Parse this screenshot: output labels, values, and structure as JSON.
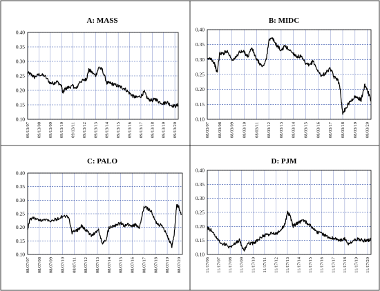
{
  "chart_data": [
    {
      "type": "line",
      "title": "A: MASS",
      "ylim": [
        0.1,
        0.4
      ],
      "yticks": [
        "0.10",
        "0.15",
        "0.20",
        "0.25",
        "0.30",
        "0.35",
        "0.40"
      ],
      "xticks": [
        "09/13/07",
        "09/13/08",
        "09/13/09",
        "09/13/10",
        "09/13/11",
        "09/13/12",
        "09/13/13",
        "09/13/14",
        "09/13/15",
        "09/13/16",
        "09/13/17",
        "09/13/18",
        "09/13/19",
        "09/13/20"
      ],
      "grid": true,
      "x": [
        0.0,
        0.3,
        0.6,
        1.0,
        1.5,
        2.0,
        2.3,
        2.6,
        3.0,
        3.1,
        3.3,
        3.6,
        4.0,
        4.3,
        4.6,
        5.0,
        5.2,
        5.4,
        5.6,
        6.0,
        6.3,
        6.6,
        7.0,
        7.3,
        7.6,
        8.0,
        8.3,
        8.6,
        9.0,
        9.3,
        9.6,
        10.0,
        10.3,
        10.6,
        11.0,
        11.3,
        11.6,
        12.0,
        12.3,
        12.6,
        13.0,
        13.3
      ],
      "y": [
        0.26,
        0.255,
        0.245,
        0.255,
        0.25,
        0.225,
        0.225,
        0.23,
        0.215,
        0.19,
        0.205,
        0.21,
        0.215,
        0.205,
        0.23,
        0.235,
        0.24,
        0.27,
        0.265,
        0.25,
        0.28,
        0.27,
        0.225,
        0.225,
        0.22,
        0.215,
        0.21,
        0.205,
        0.19,
        0.18,
        0.175,
        0.18,
        0.195,
        0.17,
        0.165,
        0.17,
        0.16,
        0.155,
        0.16,
        0.15,
        0.145,
        0.15
      ]
    },
    {
      "type": "line",
      "title": "B: MIDC",
      "ylim": [
        0.1,
        0.4
      ],
      "yticks": [
        "0.10",
        "0.15",
        "0.20",
        "0.25",
        "0.30",
        "0.35",
        "0.40"
      ],
      "xticks": [
        "08/03/07",
        "08/03/08",
        "08/03/09",
        "08/03/10",
        "08/03/11",
        "08/03/12",
        "08/03/13",
        "08/03/14",
        "08/03/15",
        "08/03/16",
        "08/03/17",
        "08/03/18",
        "08/03/19",
        "08/03/20"
      ],
      "grid": true,
      "x": [
        0.0,
        0.3,
        0.6,
        0.8,
        1.0,
        1.3,
        1.6,
        2.0,
        2.3,
        2.6,
        3.0,
        3.3,
        3.6,
        4.0,
        4.2,
        4.5,
        4.8,
        5.0,
        5.3,
        5.6,
        6.0,
        6.3,
        6.6,
        7.0,
        7.3,
        7.6,
        8.0,
        8.3,
        8.6,
        9.0,
        9.3,
        9.6,
        10.0,
        10.3,
        10.6,
        10.8,
        11.0,
        11.3,
        11.6,
        12.0,
        12.3,
        12.5,
        12.8,
        13.0,
        13.3
      ],
      "y": [
        0.3,
        0.305,
        0.285,
        0.255,
        0.32,
        0.32,
        0.33,
        0.3,
        0.305,
        0.325,
        0.325,
        0.31,
        0.34,
        0.3,
        0.29,
        0.275,
        0.3,
        0.365,
        0.37,
        0.35,
        0.33,
        0.345,
        0.335,
        0.32,
        0.31,
        0.31,
        0.285,
        0.28,
        0.295,
        0.26,
        0.245,
        0.255,
        0.27,
        0.24,
        0.235,
        0.2,
        0.12,
        0.14,
        0.16,
        0.175,
        0.17,
        0.165,
        0.215,
        0.2,
        0.16
      ]
    },
    {
      "type": "line",
      "title": "C: PALO",
      "ylim": [
        0.1,
        0.4
      ],
      "yticks": [
        "0.10",
        "0.15",
        "0.20",
        "0.25",
        "0.30",
        "0.35",
        "0.40"
      ],
      "xticks": [
        "08/07/07",
        "08/07/08",
        "08/07/09",
        "08/07/10",
        "08/07/11",
        "08/07/12",
        "08/07/13",
        "08/07/14",
        "08/07/15",
        "08/07/16",
        "08/07/17",
        "08/07/18",
        "08/07/19",
        "08/07/20"
      ],
      "grid": true,
      "x": [
        0.0,
        0.2,
        0.5,
        1.0,
        1.5,
        2.0,
        2.5,
        3.0,
        3.5,
        3.8,
        4.0,
        4.3,
        4.6,
        4.9,
        5.2,
        5.5,
        5.8,
        6.1,
        6.4,
        6.7,
        7.0,
        7.3,
        7.6,
        8.0,
        8.3,
        8.6,
        9.0,
        9.3,
        9.6,
        10.0,
        10.3,
        10.6,
        11.0,
        11.3,
        11.6,
        12.0,
        12.2,
        12.4,
        12.6,
        12.8,
        13.0,
        13.2
      ],
      "y": [
        0.195,
        0.23,
        0.235,
        0.225,
        0.23,
        0.225,
        0.23,
        0.24,
        0.24,
        0.18,
        0.185,
        0.19,
        0.205,
        0.195,
        0.18,
        0.17,
        0.18,
        0.19,
        0.14,
        0.15,
        0.2,
        0.205,
        0.21,
        0.215,
        0.205,
        0.21,
        0.205,
        0.21,
        0.195,
        0.275,
        0.27,
        0.26,
        0.22,
        0.21,
        0.205,
        0.17,
        0.15,
        0.13,
        0.175,
        0.28,
        0.275,
        0.245
      ]
    },
    {
      "type": "line",
      "title": "D: PJM",
      "ylim": [
        0.1,
        0.4
      ],
      "yticks": [
        "0.10",
        "0.15",
        "0.20",
        "0.25",
        "0.30",
        "0.35",
        "0.40"
      ],
      "xticks": [
        "11/17/06",
        "11/17/07",
        "11/17/08",
        "11/17/09",
        "11/17/10",
        "11/17/11",
        "11/17/12",
        "11/17/13",
        "11/17/14",
        "11/17/15",
        "11/17/16",
        "11/17/17",
        "11/17/18",
        "11/17/19",
        "11/17/20"
      ],
      "grid": true,
      "x": [
        0.0,
        0.4,
        0.8,
        1.2,
        1.6,
        2.0,
        2.4,
        2.8,
        3.2,
        3.6,
        4.0,
        4.4,
        4.8,
        5.2,
        5.6,
        6.0,
        6.4,
        6.8,
        7.0,
        7.2,
        7.5,
        7.8,
        8.0,
        8.4,
        8.8,
        9.2,
        9.6,
        10.0,
        10.4,
        10.8,
        11.2,
        11.6,
        12.0,
        12.4,
        12.8,
        13.2,
        13.6,
        14.0,
        14.3
      ],
      "y": [
        0.195,
        0.185,
        0.16,
        0.14,
        0.135,
        0.125,
        0.14,
        0.15,
        0.115,
        0.14,
        0.14,
        0.15,
        0.165,
        0.17,
        0.175,
        0.175,
        0.185,
        0.21,
        0.25,
        0.24,
        0.2,
        0.21,
        0.215,
        0.22,
        0.21,
        0.195,
        0.18,
        0.175,
        0.165,
        0.16,
        0.155,
        0.15,
        0.155,
        0.135,
        0.15,
        0.155,
        0.15,
        0.15,
        0.155
      ]
    }
  ]
}
